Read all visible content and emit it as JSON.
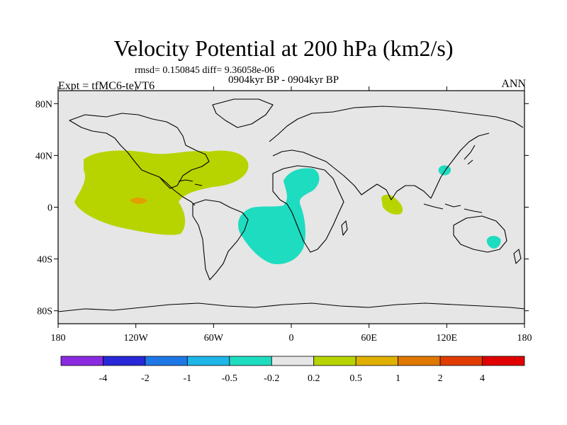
{
  "header": {
    "title": "Velocity Potential at 200 hPa (km2/s)",
    "stats": "rmsd= 0.150845 diff= 9.36058e-06",
    "experiment": "Expt = tfMC6-teVT6",
    "period": "0904kyr BP - 0904kyr BP",
    "season": "ANN"
  },
  "axes": {
    "lat_labels": [
      "80N",
      "40N",
      "0",
      "40S",
      "80S"
    ],
    "lat_values": [
      80,
      40,
      0,
      -40,
      -80
    ],
    "lon_labels": [
      "180",
      "120W",
      "60W",
      "0",
      "60E",
      "120E",
      "180"
    ],
    "lon_values": [
      -180,
      -120,
      -60,
      0,
      60,
      120,
      180
    ]
  },
  "colorbar": {
    "colors": [
      "#8a2be2",
      "#2828d8",
      "#1e78e6",
      "#1fb6e8",
      "#1edcc0",
      "#e6e6e6",
      "#b8d400",
      "#e0b000",
      "#e07800",
      "#e03c00",
      "#e00000"
    ],
    "labels": [
      "-4",
      "-2",
      "-1",
      "-0.5",
      "-0.2",
      "0.2",
      "0.5",
      "1",
      "2",
      "4"
    ]
  },
  "colors": {
    "background": "#e6e6e6",
    "positive_weak": "#b8d400",
    "positive_strong": "#e0a000",
    "negative_weak": "#1edcc0"
  }
}
